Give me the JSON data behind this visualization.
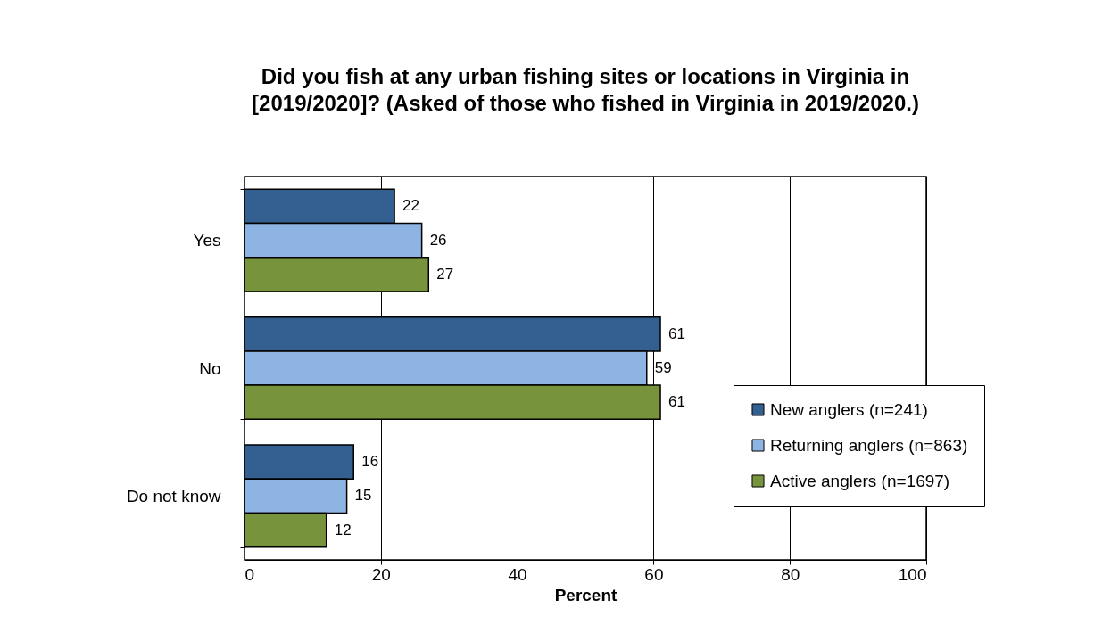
{
  "chart_data": {
    "type": "bar",
    "orientation": "horizontal",
    "title": "Did you fish at any urban fishing sites or locations in Virginia in [2019/2020]? (Asked of those who fished in Virginia in 2019/2020.)",
    "xlabel": "Percent",
    "categories": [
      "Yes",
      "No",
      "Do not know"
    ],
    "series": [
      {
        "name": "New anglers (n=241)",
        "color": "#335f91",
        "values": [
          22,
          61,
          16
        ]
      },
      {
        "name": "Returning anglers (n=863)",
        "color": "#8eb4e3",
        "values": [
          26,
          59,
          15
        ]
      },
      {
        "name": "Active anglers (n=1697)",
        "color": "#77933c",
        "values": [
          27,
          61,
          12
        ]
      }
    ],
    "xlim": [
      0,
      100
    ],
    "xticks": [
      0,
      20,
      40,
      60,
      80,
      100
    ],
    "grid": "x",
    "legend": "bottom right",
    "data_labels": true
  }
}
